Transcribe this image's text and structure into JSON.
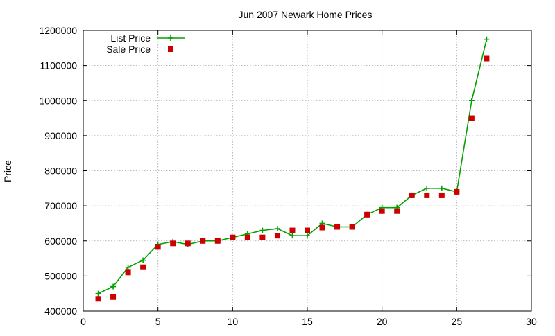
{
  "chart_data": {
    "type": "line",
    "title": "Jun 2007 Newark Home Prices",
    "xlabel": "",
    "ylabel": "Price",
    "xlim": [
      0,
      30
    ],
    "ylim": [
      400000,
      1200000
    ],
    "x_ticks": [
      0,
      5,
      10,
      15,
      20,
      25,
      30
    ],
    "x_tick_labels": [
      "0",
      "5",
      "10",
      "15",
      "20",
      "25",
      "30"
    ],
    "y_ticks": [
      400000,
      500000,
      600000,
      700000,
      800000,
      900000,
      1000000,
      1100000,
      1200000
    ],
    "y_tick_labels": [
      "400000",
      "500000",
      "600000",
      "700000",
      "800000",
      "900000",
      "1000000",
      "1100000",
      "1200000"
    ],
    "grid": true,
    "legend_position": "top-left",
    "series": [
      {
        "name": "List Price",
        "style": "line-plus",
        "color": "#00a000",
        "x": [
          1,
          2,
          3,
          4,
          5,
          6,
          7,
          8,
          9,
          10,
          11,
          12,
          13,
          14,
          15,
          16,
          17,
          18,
          19,
          20,
          21,
          22,
          23,
          24,
          25,
          26,
          27
        ],
        "y": [
          450000,
          470000,
          525000,
          545000,
          590000,
          598000,
          590000,
          600000,
          600000,
          610000,
          620000,
          630000,
          635000,
          615000,
          615000,
          650000,
          640000,
          640000,
          675000,
          695000,
          695000,
          730000,
          750000,
          750000,
          740000,
          1000000,
          1175000
        ]
      },
      {
        "name": "Sale Price",
        "style": "square",
        "color": "#cc0000",
        "x": [
          1,
          2,
          3,
          4,
          5,
          6,
          7,
          8,
          9,
          10,
          11,
          12,
          13,
          14,
          15,
          16,
          17,
          18,
          19,
          20,
          21,
          22,
          23,
          24,
          25,
          26,
          27
        ],
        "y": [
          435000,
          440000,
          510000,
          525000,
          583000,
          593000,
          593000,
          600000,
          600000,
          610000,
          610000,
          610000,
          615000,
          630000,
          630000,
          638000,
          640000,
          640000,
          675000,
          685000,
          685000,
          730000,
          730000,
          730000,
          740000,
          950000,
          1120000
        ]
      }
    ]
  }
}
